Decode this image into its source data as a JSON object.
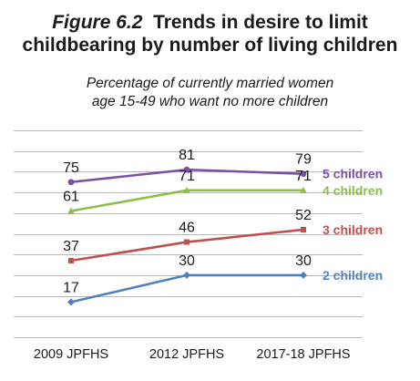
{
  "figure": {
    "label": "Figure 6.2",
    "title_line1": "Trends in desire to limit",
    "title_line2": "childbearing by number of living children",
    "subtitle_line1": "Percentage of currently married women",
    "subtitle_line2": "age 15-49 who want no more children"
  },
  "chart_data": {
    "type": "line",
    "title": "Figure 6.2 Trends in desire to limit childbearing by number of living children",
    "subtitle": "Percentage of currently married women age 15-49 who want no more children",
    "categories": [
      "2009 JPFHS",
      "2012 JPFHS",
      "2017-18 JPFHS"
    ],
    "ylim": [
      0,
      100
    ],
    "grid": true,
    "legend": "right, inline labels",
    "series": [
      {
        "name": "5 children",
        "values": [
          75,
          81,
          79
        ],
        "color": "#7b4fa3",
        "marker": "circle"
      },
      {
        "name": "4 children",
        "values": [
          61,
          71,
          71
        ],
        "color": "#8fbe4b",
        "marker": "triangle"
      },
      {
        "name": "3 children",
        "values": [
          37,
          46,
          52
        ],
        "color": "#c0504d",
        "marker": "square"
      },
      {
        "name": "2 children",
        "values": [
          17,
          30,
          30
        ],
        "color": "#4f81bd",
        "marker": "diamond"
      }
    ]
  }
}
